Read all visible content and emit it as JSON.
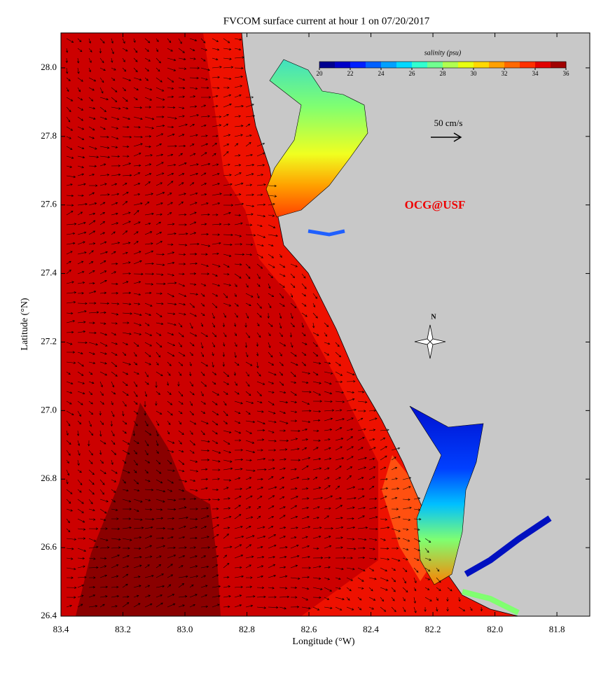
{
  "chart_data": {
    "type": "map",
    "title": "FVCOM surface current at hour 1 on 07/20/2017",
    "x_label": "Longitude (°W)",
    "y_label": "Latitude (°N)",
    "xlim": [
      83.4,
      81.694
    ],
    "ylim": [
      26.4,
      28.102
    ],
    "xticks": [
      83.4,
      83.2,
      {
        "value": 83,
        "label": "83.0"
      },
      82.8,
      82.6,
      82.4,
      82.2,
      {
        "value": 82,
        "label": "82.0"
      },
      81.8
    ],
    "yticks": [
      26.4,
      26.6,
      26.8,
      {
        "value": 27,
        "label": "27.0"
      },
      27.2,
      27.4,
      27.6,
      27.8,
      {
        "value": 28,
        "label": "28.0"
      }
    ],
    "colorbar": {
      "label": "salinity (psu)",
      "lim": [
        20,
        36
      ],
      "ticks": [
        20,
        22,
        24,
        26,
        28,
        30,
        32,
        34,
        36
      ],
      "colors": [
        "#00008f",
        "#0000c8",
        "#0020ff",
        "#0060ff",
        "#00a0ff",
        "#00d8ff",
        "#30ffd0",
        "#70ff90",
        "#b0ff50",
        "#e8ff10",
        "#ffd800",
        "#ffa000",
        "#ff6800",
        "#ff3000",
        "#e00000",
        "#a00000"
      ]
    },
    "scale_label": "50 cm/s",
    "watermark": "OCG@USF",
    "north_label": "N"
  }
}
